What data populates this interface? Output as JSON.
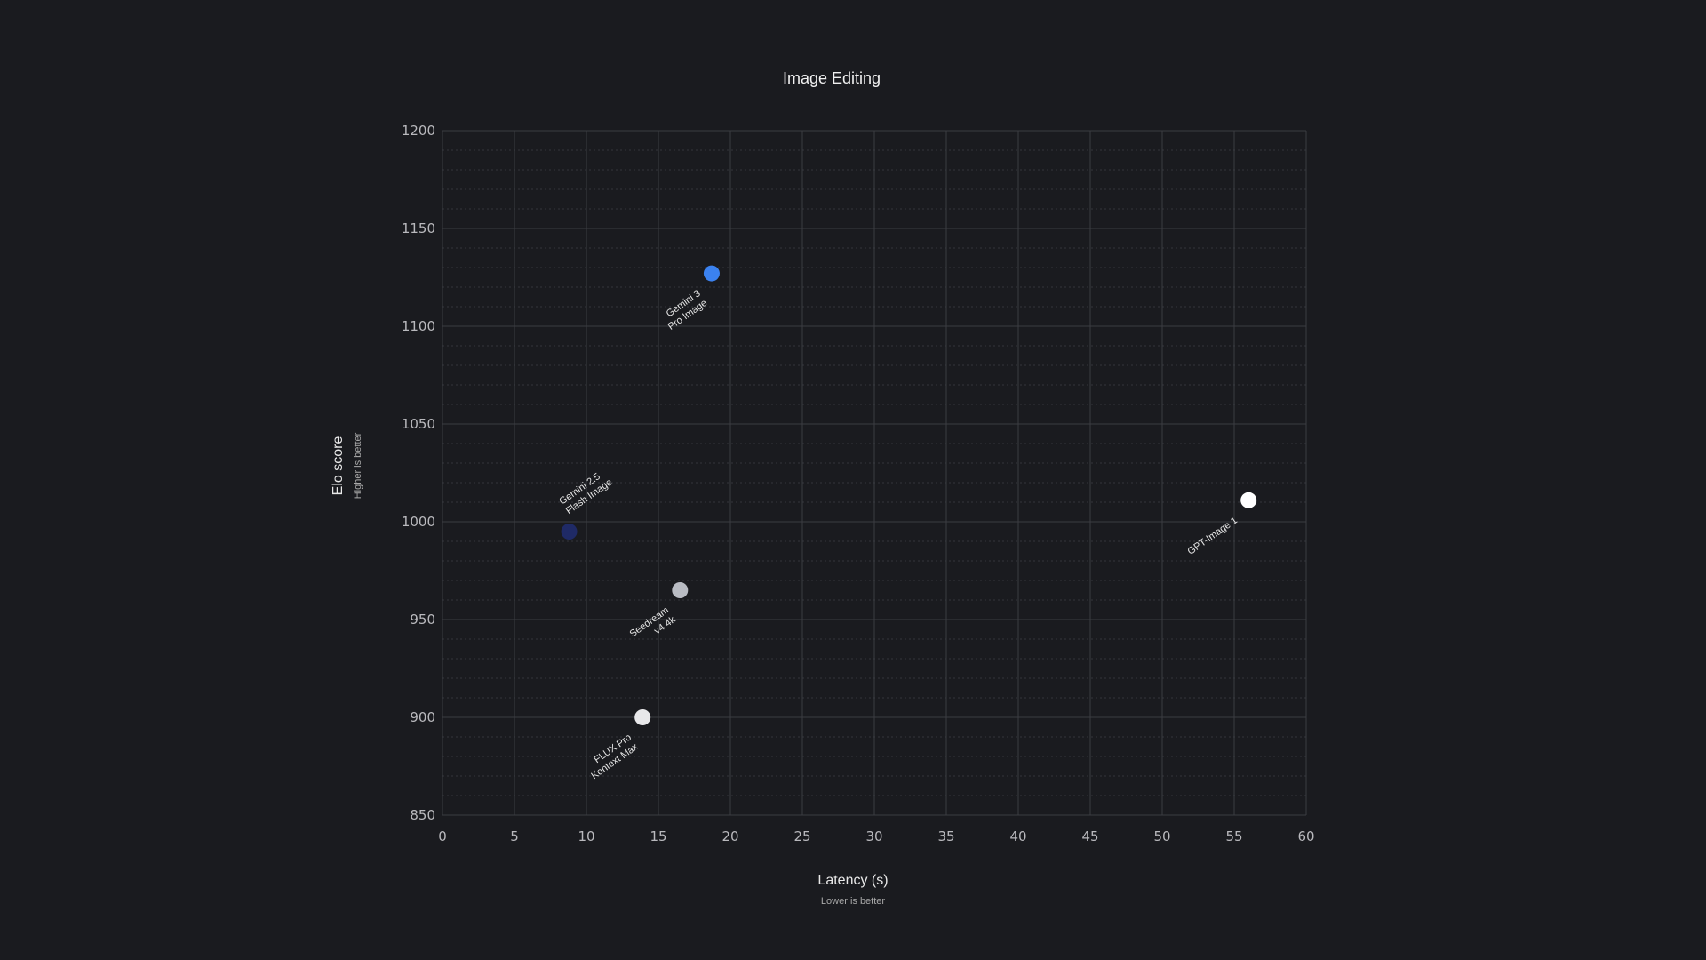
{
  "chart_data": {
    "type": "scatter",
    "title": "Image Editing",
    "xlabel": "Latency (s)",
    "xlabel_note": "Lower is better",
    "ylabel": "Elo score",
    "ylabel_note": "Higher is better",
    "xlim": [
      0,
      60
    ],
    "ylim": [
      850,
      1200
    ],
    "x_ticks": [
      "0",
      "5",
      "10",
      "15",
      "20",
      "25",
      "30",
      "35",
      "40",
      "45",
      "50",
      "55",
      "60"
    ],
    "y_ticks": [
      "850",
      "900",
      "950",
      "1000",
      "1050",
      "1100",
      "1150",
      "1200"
    ],
    "grid": true,
    "points": [
      {
        "name": "Gemini 3 Pro Image",
        "label_lines": [
          "Gemini 3",
          "Pro Image"
        ],
        "x": 18.7,
        "y": 1127,
        "color": "#3b82f0",
        "label_pos": "below"
      },
      {
        "name": "Gemini 2.5 Flash Image",
        "label_lines": [
          "Gemini 2.5",
          "Flash Image"
        ],
        "x": 8.8,
        "y": 995,
        "color": "#1f2a66",
        "label_pos": "above"
      },
      {
        "name": "GPT-Image 1",
        "label_lines": [
          "GPT-Image 1"
        ],
        "x": 56.0,
        "y": 1011,
        "color": "#ffffff",
        "label_pos": "below"
      },
      {
        "name": "Seedream v4 4k",
        "label_lines": [
          "Seedream",
          "v4 4k"
        ],
        "x": 16.5,
        "y": 965,
        "color": "#b9bcc3",
        "label_pos": "below"
      },
      {
        "name": "FLUX Pro Kontext Max",
        "label_lines": [
          "FLUX Pro",
          "Kontext Max"
        ],
        "x": 13.9,
        "y": 900,
        "color": "#e8e8ea",
        "label_pos": "below"
      }
    ]
  }
}
